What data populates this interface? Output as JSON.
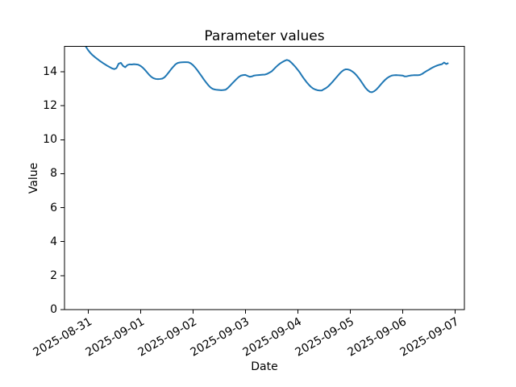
{
  "figure": {
    "background": "#ffffff",
    "text_color": "#000000",
    "axis_color": "#000000"
  },
  "chart_data": {
    "type": "line",
    "title": "Parameter values",
    "xlabel": "Date",
    "ylabel": "Value",
    "series_color": "#1f77b4",
    "grid": false,
    "legend": false,
    "x_unit": "hours since 2025-08-31 00:00",
    "x_start_hour": -2,
    "x_step_hours": 1,
    "xlim_hours": [
      -10.8,
      172.3
    ],
    "ylim": [
      0,
      15.5
    ],
    "y_ticks": [
      0,
      2,
      4,
      6,
      8,
      10,
      12,
      14
    ],
    "x_ticks": [
      {
        "hour": 0,
        "label": "2025-08-31"
      },
      {
        "hour": 24,
        "label": "2025-09-01"
      },
      {
        "hour": 48,
        "label": "2025-09-02"
      },
      {
        "hour": 72,
        "label": "2025-09-03"
      },
      {
        "hour": 96,
        "label": "2025-09-04"
      },
      {
        "hour": 120,
        "label": "2025-09-05"
      },
      {
        "hour": 144,
        "label": "2025-09-06"
      },
      {
        "hour": 168,
        "label": "2025-09-07"
      }
    ],
    "values": [
      15.72,
      15.48,
      15.28,
      15.12,
      14.99,
      14.88,
      14.78,
      14.68,
      14.59,
      14.5,
      14.42,
      14.34,
      14.27,
      14.2,
      14.16,
      14.22,
      14.48,
      14.53,
      14.35,
      14.27,
      14.4,
      14.44,
      14.43,
      14.45,
      14.44,
      14.42,
      14.35,
      14.25,
      14.12,
      13.97,
      13.82,
      13.7,
      13.62,
      13.58,
      13.57,
      13.58,
      13.6,
      13.68,
      13.82,
      13.98,
      14.15,
      14.3,
      14.44,
      14.52,
      14.55,
      14.56,
      14.57,
      14.57,
      14.56,
      14.5,
      14.4,
      14.26,
      14.1,
      13.92,
      13.74,
      13.55,
      13.38,
      13.22,
      13.09,
      13.0,
      12.96,
      12.94,
      12.93,
      12.92,
      12.93,
      12.95,
      13.05,
      13.18,
      13.32,
      13.45,
      13.58,
      13.7,
      13.78,
      13.81,
      13.82,
      13.76,
      13.71,
      13.73,
      13.78,
      13.8,
      13.81,
      13.82,
      13.83,
      13.84,
      13.88,
      13.95,
      14.02,
      14.15,
      14.28,
      14.4,
      14.5,
      14.58,
      14.65,
      14.7,
      14.66,
      14.55,
      14.42,
      14.28,
      14.12,
      13.95,
      13.75,
      13.57,
      13.4,
      13.25,
      13.12,
      13.02,
      12.96,
      12.92,
      12.9,
      12.9,
      12.98,
      13.05,
      13.15,
      13.28,
      13.42,
      13.57,
      13.72,
      13.87,
      14.0,
      14.1,
      14.15,
      14.14,
      14.1,
      14.02,
      13.92,
      13.78,
      13.62,
      13.44,
      13.25,
      13.06,
      12.92,
      12.82,
      12.8,
      12.86,
      12.96,
      13.1,
      13.25,
      13.4,
      13.53,
      13.64,
      13.72,
      13.78,
      13.8,
      13.81,
      13.8,
      13.79,
      13.78,
      13.73,
      13.74,
      13.77,
      13.79,
      13.8,
      13.8,
      13.8,
      13.82,
      13.88,
      13.97,
      14.05,
      14.12,
      14.2,
      14.27,
      14.33,
      14.38,
      14.42,
      14.45,
      14.55,
      14.46,
      14.52
    ]
  }
}
